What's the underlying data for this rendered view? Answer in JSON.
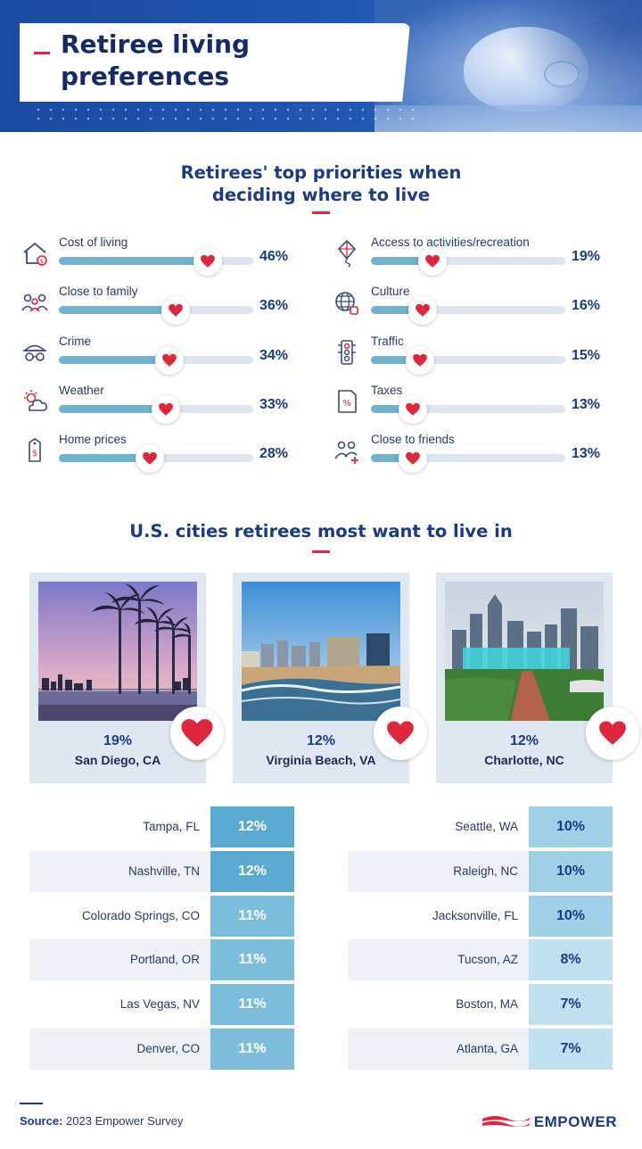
{
  "header": {
    "title": "Retiree living preferences"
  },
  "priorities": {
    "title": "Retirees' top priorities when deciding where to live",
    "left": [
      {
        "label": "Cost of living",
        "value": 46,
        "value_label": "46%",
        "icon": "house-dollar-icon"
      },
      {
        "label": "Close to family",
        "value": 36,
        "value_label": "36%",
        "icon": "family-icon"
      },
      {
        "label": "Crime",
        "value": 34,
        "value_label": "34%",
        "icon": "masked-thief-icon"
      },
      {
        "label": "Weather",
        "value": 33,
        "value_label": "33%",
        "icon": "sun-cloud-icon"
      },
      {
        "label": "Home prices",
        "value": 28,
        "value_label": "28%",
        "icon": "price-tag-icon"
      }
    ],
    "right": [
      {
        "label": "Access to activities/recreation",
        "value": 19,
        "value_label": "19%",
        "icon": "kite-icon"
      },
      {
        "label": "Culture",
        "value": 16,
        "value_label": "16%",
        "icon": "globe-icon"
      },
      {
        "label": "Traffic",
        "value": 15,
        "value_label": "15%",
        "icon": "traffic-light-icon"
      },
      {
        "label": "Taxes",
        "value": 13,
        "value_label": "13%",
        "icon": "tax-document-icon"
      },
      {
        "label": "Close to friends",
        "value": 13,
        "value_label": "13%",
        "icon": "friends-icon"
      }
    ]
  },
  "cities": {
    "title": "U.S. cities retirees most want to live in",
    "featured": [
      {
        "city": "San Diego, CA",
        "value": 19,
        "value_label": "19%",
        "scene": "palm-trees-sunset-image"
      },
      {
        "city": "Virginia Beach, VA",
        "value": 12,
        "value_label": "12%",
        "scene": "beach-skyline-image"
      },
      {
        "city": "Charlotte, NC",
        "value": 12,
        "value_label": "12%",
        "scene": "city-skyline-park-image"
      }
    ],
    "left_table": [
      {
        "city": "Tampa, FL",
        "value": 12,
        "value_label": "12%"
      },
      {
        "city": "Nashville, TN",
        "value": 12,
        "value_label": "12%"
      },
      {
        "city": "Colorado Springs, CO",
        "value": 11,
        "value_label": "11%"
      },
      {
        "city": "Portland, OR",
        "value": 11,
        "value_label": "11%"
      },
      {
        "city": "Las Vegas, NV",
        "value": 11,
        "value_label": "11%"
      },
      {
        "city": "Denver, CO",
        "value": 11,
        "value_label": "11%"
      }
    ],
    "right_table": [
      {
        "city": "Seattle, WA",
        "value": 10,
        "value_label": "10%"
      },
      {
        "city": "Raleigh, NC",
        "value": 10,
        "value_label": "10%"
      },
      {
        "city": "Jacksonville, FL",
        "value": 10,
        "value_label": "10%"
      },
      {
        "city": "Tucson, AZ",
        "value": 8,
        "value_label": "8%"
      },
      {
        "city": "Boston, MA",
        "value": 7,
        "value_label": "7%"
      },
      {
        "city": "Atlanta, GA",
        "value": 7,
        "value_label": "7%"
      }
    ]
  },
  "footer": {
    "source_label": "Source:",
    "source_text": "2023 Empower Survey",
    "brand": "EMPOWER"
  },
  "colors": {
    "navy": "#1b3a86",
    "red": "#e0263a",
    "bar": "#6fb3cf",
    "track": "#dde6ef",
    "row_alt": "#eef2f6"
  },
  "chart_data": [
    {
      "type": "bar",
      "title": "Retirees' top priorities when deciding where to live",
      "categories": [
        "Cost of living",
        "Close to family",
        "Crime",
        "Weather",
        "Home prices",
        "Access to activities/recreation",
        "Culture",
        "Traffic",
        "Taxes",
        "Close to friends"
      ],
      "values": [
        46,
        36,
        34,
        33,
        28,
        19,
        16,
        15,
        13,
        13
      ],
      "ylim": [
        0,
        60
      ]
    },
    {
      "type": "table",
      "title": "U.S. cities retirees most want to live in",
      "categories": [
        "San Diego, CA",
        "Virginia Beach, VA",
        "Charlotte, NC",
        "Tampa, FL",
        "Nashville, TN",
        "Colorado Springs, CO",
        "Portland, OR",
        "Las Vegas, NV",
        "Denver, CO",
        "Seattle, WA",
        "Raleigh, NC",
        "Jacksonville, FL",
        "Tucson, AZ",
        "Boston, MA",
        "Atlanta, GA"
      ],
      "values": [
        19,
        12,
        12,
        12,
        12,
        11,
        11,
        11,
        11,
        10,
        10,
        10,
        8,
        7,
        7
      ]
    }
  ]
}
